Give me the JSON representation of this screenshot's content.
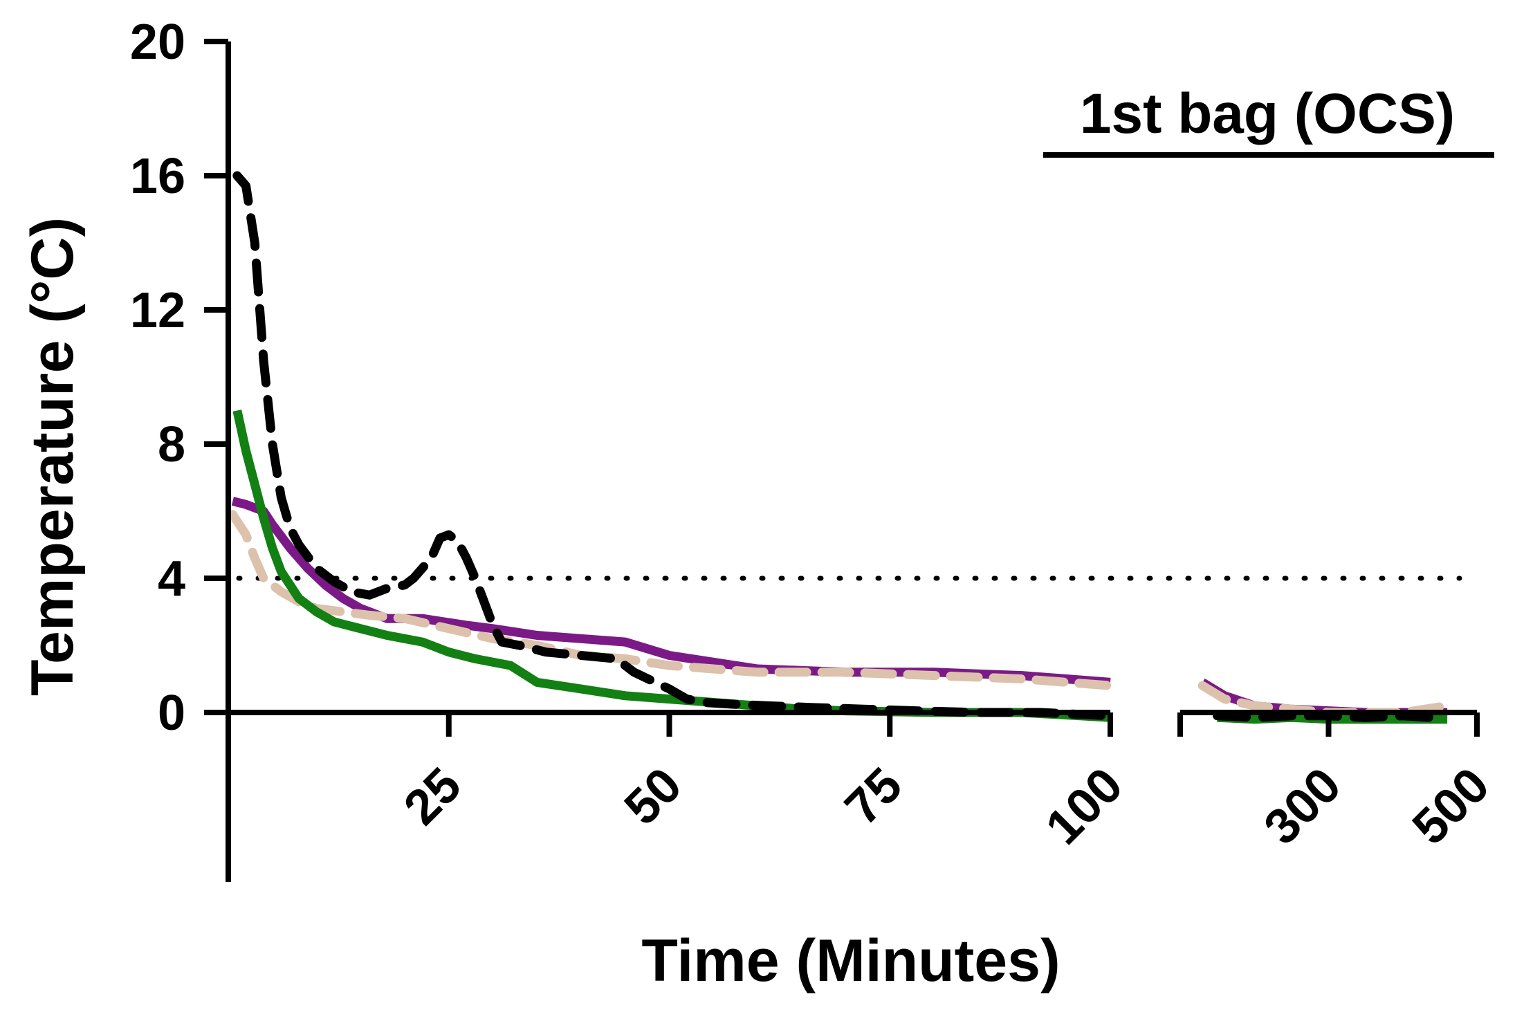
{
  "chart_data": {
    "type": "line",
    "title": "",
    "annotation": "1st bag (OCS)",
    "xlabel": "Time (Minutes)",
    "ylabel": "Temperature (°C)",
    "ylim": [
      0,
      20
    ],
    "y_ticks": [
      "0",
      "4",
      "8",
      "12",
      "16",
      "20"
    ],
    "x_segments": [
      {
        "range": [
          0,
          100
        ],
        "ticks": [
          "25",
          "50",
          "75",
          "100"
        ],
        "tick_values": [
          25,
          50,
          75,
          100
        ]
      },
      {
        "range": [
          100,
          500
        ],
        "ticks": [
          "300",
          "500"
        ],
        "tick_values": [
          300,
          500
        ]
      }
    ],
    "reference_line": {
      "y": 4,
      "style": "dotted"
    },
    "legend": "none",
    "grid": false,
    "colors": {
      "black": "#000000",
      "purple": "#7b1a86",
      "tan": "#dcc2ac",
      "green": "#138013"
    },
    "series": [
      {
        "color": "#000000",
        "style": "dashed",
        "points": [
          [
            1,
            16
          ],
          [
            2,
            15.7
          ],
          [
            3,
            14
          ],
          [
            4,
            10.5
          ],
          [
            5,
            8
          ],
          [
            6,
            6.4
          ],
          [
            7,
            5.5
          ],
          [
            8,
            5
          ],
          [
            10,
            4.3
          ],
          [
            12,
            3.9
          ],
          [
            14,
            3.6
          ],
          [
            16,
            3.5
          ],
          [
            18,
            3.7
          ],
          [
            20,
            3.8
          ],
          [
            21,
            4
          ],
          [
            23,
            4.6
          ],
          [
            24,
            5.2
          ],
          [
            25,
            5.3
          ],
          [
            26,
            5.1
          ],
          [
            27,
            4.6
          ],
          [
            28,
            4
          ],
          [
            29,
            3.3
          ],
          [
            30,
            2.6
          ],
          [
            31,
            2.1
          ],
          [
            33,
            2
          ],
          [
            36,
            1.8
          ],
          [
            40,
            1.7
          ],
          [
            44,
            1.6
          ],
          [
            46,
            1.2
          ],
          [
            50,
            0.7
          ],
          [
            52,
            0.4
          ],
          [
            54,
            0.3
          ],
          [
            57,
            0.25
          ],
          [
            61,
            0.2
          ],
          [
            66,
            0.15
          ],
          [
            72,
            0.1
          ],
          [
            78,
            0.05
          ],
          [
            85,
            0.0
          ],
          [
            92,
            0.0
          ],
          [
            100,
            -0.1
          ],
          [
            150,
            -0.1
          ],
          [
            200,
            -0.15
          ],
          [
            250,
            -0.1
          ],
          [
            300,
            -0.1
          ],
          [
            350,
            -0.15
          ],
          [
            400,
            -0.1
          ],
          [
            440,
            -0.15
          ]
        ]
      },
      {
        "color": "#7b1a86",
        "style": "solid",
        "points": [
          [
            0.5,
            6.3
          ],
          [
            2,
            6.2
          ],
          [
            4,
            6.0
          ],
          [
            5,
            5.6
          ],
          [
            7,
            4.9
          ],
          [
            9,
            4.3
          ],
          [
            11,
            3.8
          ],
          [
            13,
            3.4
          ],
          [
            15,
            3.1
          ],
          [
            18,
            2.8
          ],
          [
            22,
            2.8
          ],
          [
            27,
            2.6
          ],
          [
            30,
            2.5
          ],
          [
            35,
            2.3
          ],
          [
            40,
            2.2
          ],
          [
            45,
            2.1
          ],
          [
            50,
            1.7
          ],
          [
            55,
            1.5
          ],
          [
            60,
            1.3
          ],
          [
            70,
            1.2
          ],
          [
            80,
            1.2
          ],
          [
            90,
            1.1
          ],
          [
            100,
            0.9
          ],
          [
            130,
            0.9
          ],
          [
            160,
            0.5
          ],
          [
            200,
            0.2
          ],
          [
            250,
            0.1
          ],
          [
            300,
            0.05
          ],
          [
            350,
            0.0
          ],
          [
            400,
            0.0
          ],
          [
            460,
            0.0
          ]
        ]
      },
      {
        "color": "#dcc2ac",
        "style": "dashed",
        "points": [
          [
            0.5,
            5.9
          ],
          [
            2,
            5.3
          ],
          [
            3,
            4.6
          ],
          [
            4,
            4.0
          ],
          [
            6,
            3.6
          ],
          [
            8,
            3.3
          ],
          [
            10,
            3.1
          ],
          [
            13,
            3.0
          ],
          [
            16,
            2.9
          ],
          [
            20,
            2.8
          ],
          [
            25,
            2.5
          ],
          [
            30,
            2.2
          ],
          [
            35,
            2.0
          ],
          [
            40,
            1.7
          ],
          [
            45,
            1.6
          ],
          [
            50,
            1.4
          ],
          [
            55,
            1.3
          ],
          [
            60,
            1.2
          ],
          [
            70,
            1.2
          ],
          [
            80,
            1.1
          ],
          [
            90,
            1.0
          ],
          [
            100,
            0.8
          ],
          [
            130,
            0.8
          ],
          [
            160,
            0.4
          ],
          [
            200,
            0.2
          ],
          [
            250,
            0.1
          ],
          [
            300,
            0.0
          ],
          [
            350,
            0.0
          ],
          [
            400,
            0.0
          ],
          [
            460,
            0.2
          ]
        ]
      },
      {
        "color": "#138013",
        "style": "solid",
        "points": [
          [
            1,
            9
          ],
          [
            2,
            7.8
          ],
          [
            3,
            6.8
          ],
          [
            4,
            5.8
          ],
          [
            5,
            4.9
          ],
          [
            6,
            4.2
          ],
          [
            8,
            3.4
          ],
          [
            10,
            3.0
          ],
          [
            12,
            2.7
          ],
          [
            15,
            2.5
          ],
          [
            18,
            2.3
          ],
          [
            22,
            2.1
          ],
          [
            25,
            1.8
          ],
          [
            28,
            1.6
          ],
          [
            32,
            1.4
          ],
          [
            35,
            0.9
          ],
          [
            40,
            0.7
          ],
          [
            45,
            0.5
          ],
          [
            50,
            0.4
          ],
          [
            55,
            0.3
          ],
          [
            60,
            0.2
          ],
          [
            65,
            0.1
          ],
          [
            70,
            0.05
          ],
          [
            80,
            0.0
          ],
          [
            90,
            0.0
          ],
          [
            100,
            -0.15
          ],
          [
            150,
            -0.15
          ],
          [
            200,
            -0.2
          ],
          [
            250,
            -0.15
          ],
          [
            300,
            -0.2
          ],
          [
            350,
            -0.2
          ],
          [
            400,
            -0.2
          ],
          [
            460,
            -0.2
          ]
        ]
      }
    ]
  }
}
